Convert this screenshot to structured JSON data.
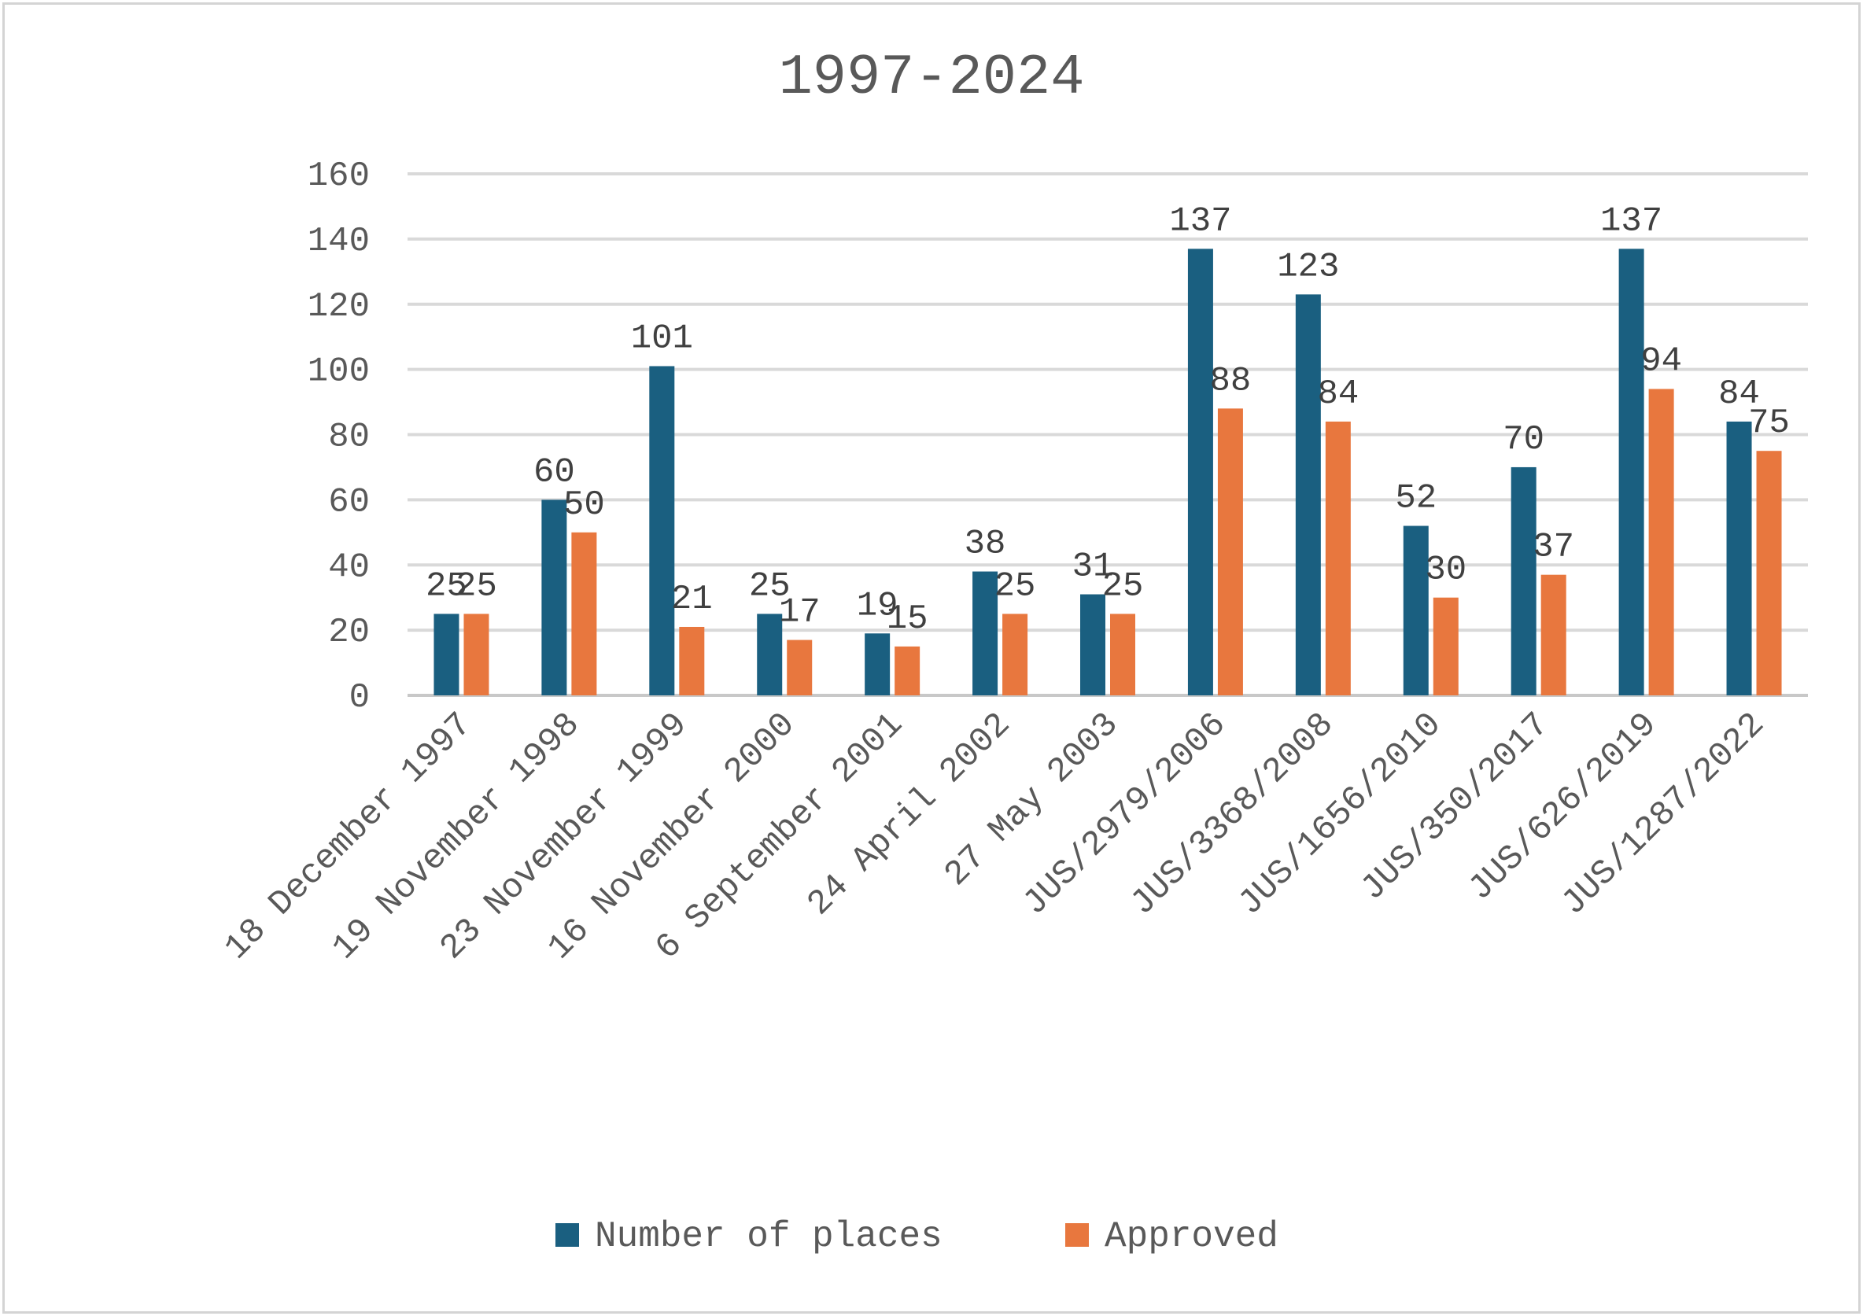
{
  "chart_data": {
    "type": "bar",
    "title": "1997-2024",
    "xlabel": "",
    "ylabel": "",
    "ylim": [
      0,
      160
    ],
    "yticks": [
      0,
      20,
      40,
      60,
      80,
      100,
      120,
      140,
      160
    ],
    "grid": true,
    "legend_position": "bottom",
    "categories": [
      "18 December 1997",
      "19 November 1998",
      "23 November 1999",
      "16 November 2000",
      "6 September 2001",
      "24 April 2002",
      "27 May 2003",
      "JUS/2979/2006",
      "JUS/3368/2008",
      "JUS/1656/2010",
      "JUS/350/2017",
      "JUS/626/2019",
      "JUS/1287/2022"
    ],
    "series": [
      {
        "name": "Number of places",
        "color": "#1a5f80",
        "values": [
          25,
          60,
          101,
          25,
          19,
          38,
          31,
          137,
          123,
          52,
          70,
          137,
          84
        ]
      },
      {
        "name": "Approved",
        "color": "#e8773e",
        "values": [
          25,
          50,
          21,
          17,
          15,
          25,
          25,
          88,
          84,
          30,
          37,
          94,
          75
        ]
      }
    ]
  }
}
